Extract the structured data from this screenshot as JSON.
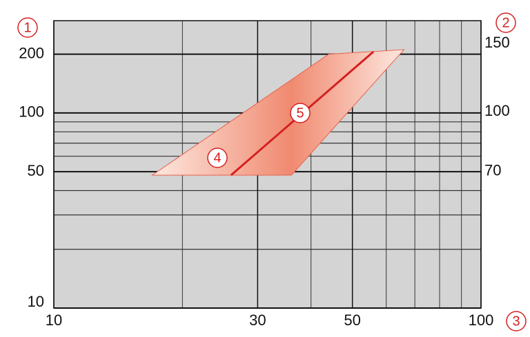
{
  "chart_data": {
    "type": "line",
    "log_x": true,
    "log_y": true,
    "xlim": [
      10,
      100
    ],
    "ylim": [
      10,
      297
    ],
    "y2lim": [
      31,
      172
    ],
    "xticks": [
      10,
      30,
      50,
      100
    ],
    "yticks": [
      10,
      50,
      100,
      200
    ],
    "y2ticks": [
      70,
      100,
      150
    ],
    "xminor": [
      20,
      40,
      60,
      70,
      80,
      90
    ],
    "yminor": [
      20,
      30,
      40,
      60,
      70,
      80,
      90
    ],
    "grid": true,
    "x_label": "3",
    "y_label": "1",
    "y2_label": "2",
    "band": {
      "name": "4",
      "color": "#e8604a",
      "x": [
        17,
        44,
        66,
        36
      ],
      "y": [
        48,
        200,
        211,
        48
      ]
    },
    "series": [
      {
        "name": "5",
        "color": "#d42020",
        "x": [
          26,
          56
        ],
        "y": [
          48,
          206
        ]
      }
    ]
  }
}
